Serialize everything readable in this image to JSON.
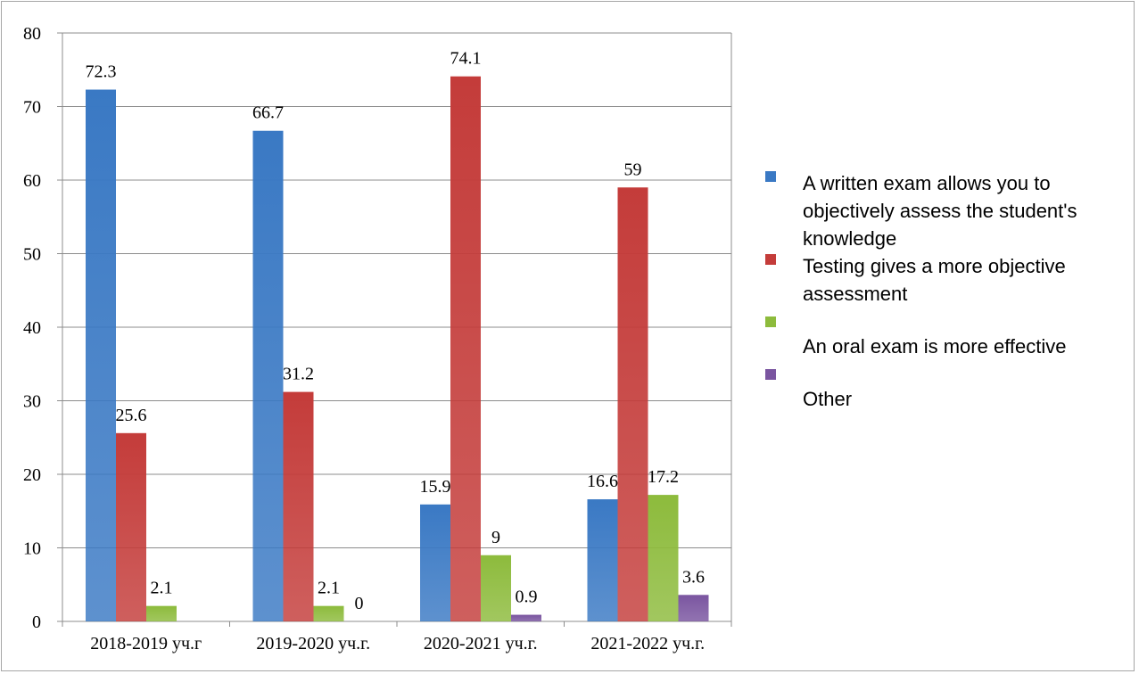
{
  "chart_data": {
    "type": "bar",
    "categories": [
      "2018-2019 уч.г",
      "2019-2020 уч.г.",
      "2020-2021 уч.г.",
      "2021-2022 уч.г."
    ],
    "series": [
      {
        "name": "A written exam allows you to objectively assess the student's knowledge",
        "color": "#3a79c4",
        "values": [
          72.3,
          66.7,
          15.9,
          16.6
        ]
      },
      {
        "name": "Testing gives a more objective assessment",
        "color": "#c43c3a",
        "values": [
          25.6,
          31.2,
          74.1,
          59
        ]
      },
      {
        "name": "An oral exam is more effective",
        "color": "#8dbb3c",
        "values": [
          2.1,
          2.1,
          9,
          17.2
        ]
      },
      {
        "name": "Other",
        "color": "#7a55a0",
        "values": [
          null,
          0,
          0.9,
          3.6
        ]
      }
    ],
    "ylim": [
      0,
      80
    ],
    "yticks": [
      0,
      10,
      20,
      30,
      40,
      50,
      60,
      70,
      80
    ],
    "grid": true,
    "legend_position": "right",
    "title": "",
    "xlabel": "",
    "ylabel": ""
  }
}
